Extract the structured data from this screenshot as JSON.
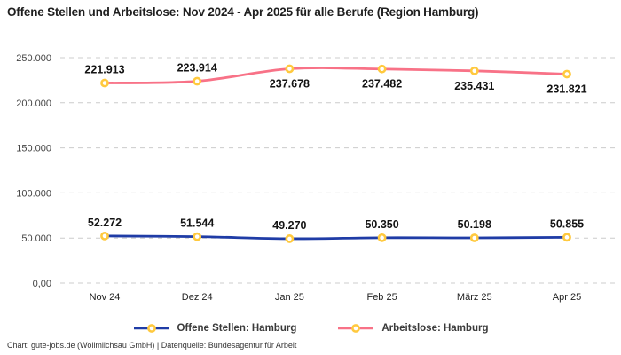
{
  "title": "Offene Stellen und Arbeitslose: Nov 2024 - Apr 2025 für alle Berufe (Region Hamburg)",
  "footer": "Chart: gute-jobs.de (Wollmilchsau GmbH) | Datenquelle: Bundesagentur für Arbeit",
  "chart_data": {
    "type": "line",
    "title": "Offene Stellen und Arbeitslose: Nov 2024 - Apr 2025 für alle Berufe (Region Hamburg)",
    "categories": [
      "Nov 24",
      "Dez 24",
      "Jan 25",
      "Feb 25",
      "März 25",
      "Apr 25"
    ],
    "ylim": [
      0,
      250000
    ],
    "y_ticks": [
      {
        "value": 0,
        "label": "0,00"
      },
      {
        "value": 50000,
        "label": "50.000"
      },
      {
        "value": 100000,
        "label": "100.000"
      },
      {
        "value": 150000,
        "label": "150.000"
      },
      {
        "value": 200000,
        "label": "200.000"
      },
      {
        "value": 250000,
        "label": "250.000"
      }
    ],
    "grid": "horizontal-dashed",
    "grid_color": "#cccccc",
    "legend_position": "bottom",
    "marker": {
      "fill": "#ffffff",
      "stroke": "#ffc93e"
    },
    "series": [
      {
        "name": "Offene Stellen: Hamburg",
        "color": "#1f3ca6",
        "values": [
          52272,
          51544,
          49270,
          50350,
          50198,
          50855
        ],
        "labels": [
          "52.272",
          "51.544",
          "49.270",
          "50.350",
          "50.198",
          "50.855"
        ],
        "label_positions": [
          "above",
          "above",
          "above",
          "above",
          "above",
          "above"
        ]
      },
      {
        "name": "Arbeitslose: Hamburg",
        "color": "#f87287",
        "values": [
          221913,
          223914,
          237678,
          237482,
          235431,
          231821
        ],
        "labels": [
          "221.913",
          "223.914",
          "237.678",
          "237.482",
          "235.431",
          "231.821"
        ],
        "label_positions": [
          "above",
          "above",
          "below",
          "below",
          "below",
          "below"
        ]
      }
    ]
  }
}
